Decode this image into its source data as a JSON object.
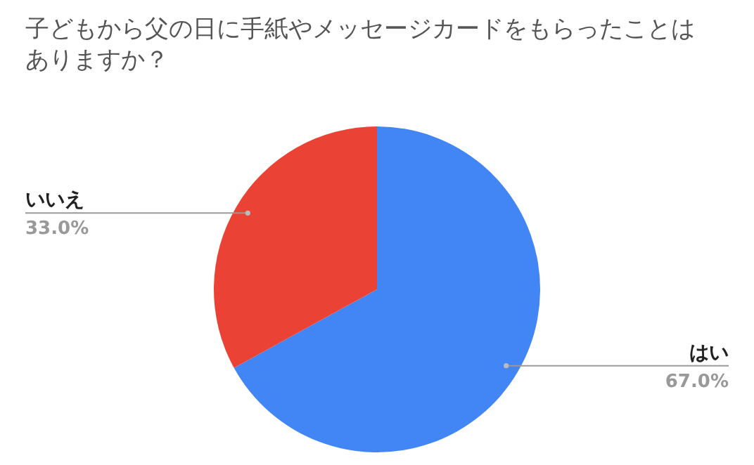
{
  "chart_data": {
    "type": "pie",
    "title": "子どもから父の日に手紙やメッセージカードをもらったことはありますか？",
    "categories": [
      "はい",
      "いいえ"
    ],
    "values": [
      67.0,
      33.0
    ],
    "colors": [
      "#4285f4",
      "#ea4335"
    ],
    "value_labels": [
      "67.0%",
      "33.0%"
    ]
  }
}
